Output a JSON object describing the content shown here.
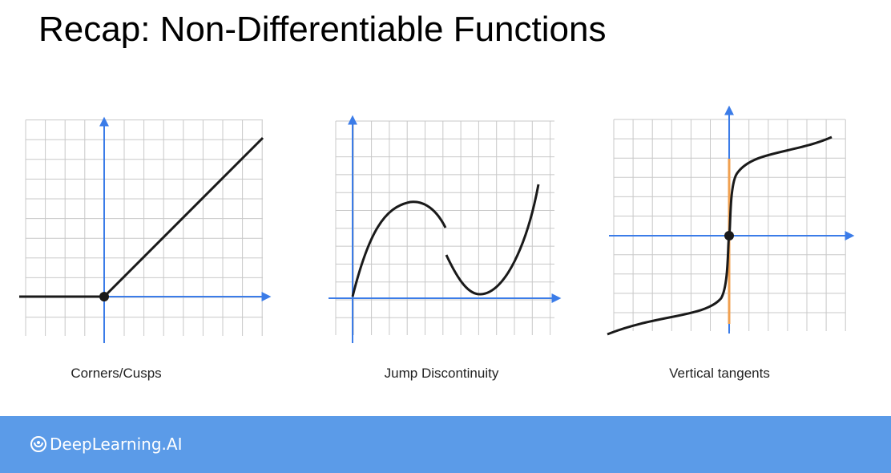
{
  "title": "Recap: Non-Differentiable Functions",
  "panels": [
    {
      "caption": "Corners/Cusps",
      "icon": "corner-icon"
    },
    {
      "caption": "Jump Discontinuity",
      "icon": "jump-icon"
    },
    {
      "caption": "Vertical tangents",
      "icon": "vertical-tangent-icon"
    }
  ],
  "footer": {
    "brand": "DeepLearning.AI",
    "logo": "deeplearning-logo-icon"
  },
  "colors": {
    "axis": "#3b7ce8",
    "grid": "#c8c8c8",
    "curve": "#1a1a1a",
    "tangent": "#f0a050",
    "footer": "#5b9be8"
  }
}
